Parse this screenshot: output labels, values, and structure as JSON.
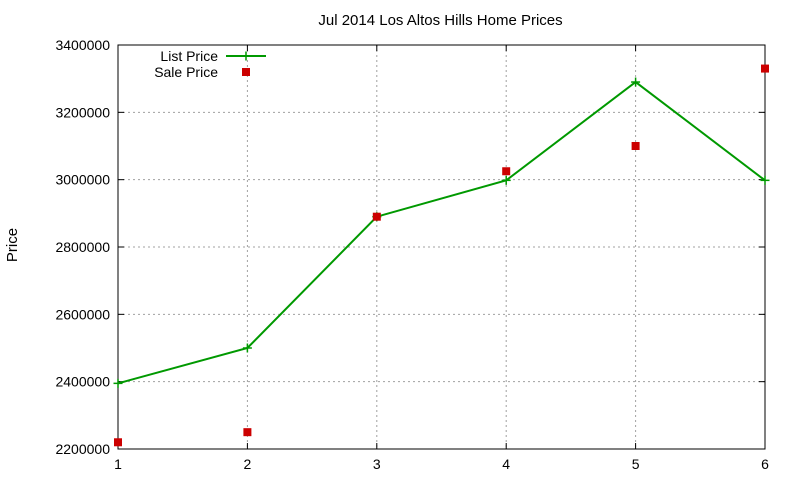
{
  "chart_data": {
    "type": "line",
    "title": "Jul 2014 Los Altos Hills Home Prices",
    "xlabel": "",
    "ylabel": "Price",
    "x": [
      1,
      2,
      3,
      4,
      5,
      6
    ],
    "xticks": [
      "1",
      "2",
      "3",
      "4",
      "5",
      "6"
    ],
    "yticks": [
      "2200000",
      "2400000",
      "2600000",
      "2800000",
      "3000000",
      "3200000",
      "3400000"
    ],
    "xlim": [
      1,
      6
    ],
    "ylim": [
      2200000,
      3400000
    ],
    "grid": true,
    "legend_position": "top-left",
    "series": [
      {
        "name": "List Price",
        "style": "line-with-plus-markers",
        "color": "#009900",
        "values": [
          2395000,
          2500000,
          2890000,
          2998000,
          3290000,
          2998000
        ]
      },
      {
        "name": "Sale Price",
        "style": "square-markers",
        "color": "#cc0000",
        "values": [
          2220000,
          2250000,
          2890000,
          3025000,
          3100000,
          3330000
        ]
      }
    ]
  }
}
